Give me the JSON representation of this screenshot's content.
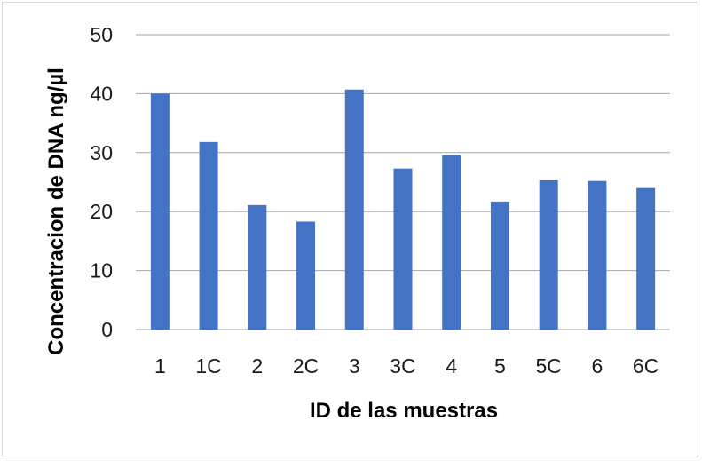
{
  "chart_data": {
    "type": "bar",
    "categories": [
      "1",
      "1C",
      "2",
      "2C",
      "3",
      "3C",
      "4",
      "5",
      "5C",
      "6",
      "6C"
    ],
    "values": [
      40.0,
      31.8,
      21.1,
      18.3,
      40.7,
      27.3,
      29.6,
      21.7,
      25.3,
      25.2,
      24.0
    ],
    "xlabel": "ID de las muestras",
    "ylabel": "Concentracion de DNA ng/µl",
    "ylim": [
      0,
      50
    ],
    "yticks": [
      "0",
      "10",
      "20",
      "30",
      "40",
      "50"
    ],
    "grid": true,
    "legend": "none",
    "bar_color": "#4472C4",
    "grid_color": "#a6a6a6"
  }
}
